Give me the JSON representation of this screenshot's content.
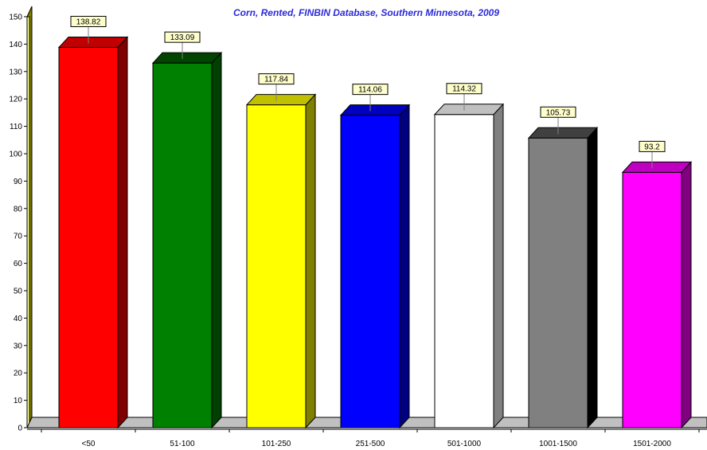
{
  "chart_data": {
    "type": "bar",
    "title": "Corn, Rented, FINBIN Database, Southern Minnesota, 2009",
    "xlabel": "",
    "ylabel": "",
    "ylim": [
      0,
      150
    ],
    "yticks": [
      0,
      10,
      20,
      30,
      40,
      50,
      60,
      70,
      80,
      90,
      100,
      110,
      120,
      130,
      140,
      150
    ],
    "categories": [
      "<50",
      "51-100",
      "101-250",
      "251-500",
      "501-1000",
      "1001-1500",
      "1501-2000"
    ],
    "values": [
      138.82,
      133.09,
      117.84,
      114.06,
      114.32,
      105.73,
      93.2
    ],
    "value_labels": [
      "138.82",
      "133.09",
      "117.84",
      "114.06",
      "114.32",
      "105.73",
      "93.2"
    ],
    "colors": [
      "#ff0000",
      "#008000",
      "#ffff00",
      "#0000ff",
      "#ffffff",
      "#808080",
      "#ff00ff"
    ],
    "side_colors": [
      "#800000",
      "#004000",
      "#808000",
      "#000080",
      "#808080",
      "#000000",
      "#800080"
    ],
    "top_colors": [
      "#c00000",
      "#004400",
      "#c0c000",
      "#0000c0",
      "#c0c0c0",
      "#404040",
      "#c000c0"
    ],
    "title_color": "#2b2bd9",
    "grid": false,
    "legend": "none"
  }
}
